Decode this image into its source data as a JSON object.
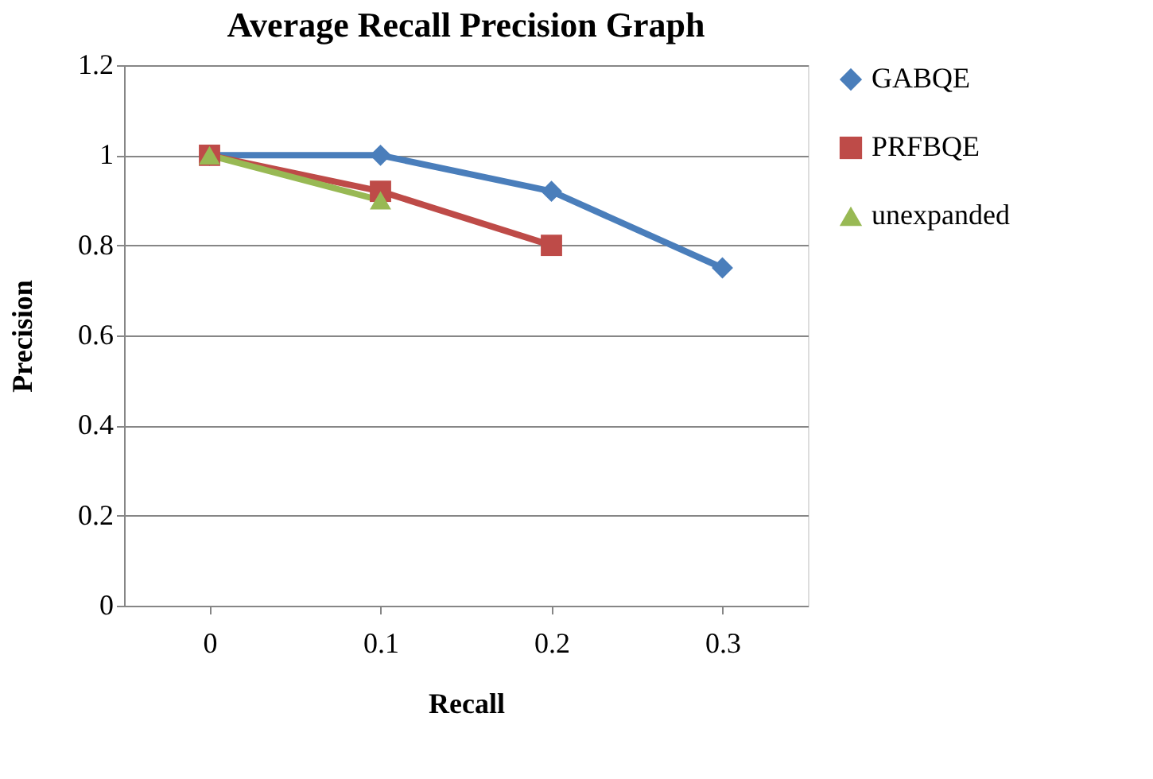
{
  "chart_data": {
    "type": "line",
    "title": "Average  Recall Precision Graph",
    "xlabel": "Recall",
    "ylabel": "Precision",
    "categories": [
      "0",
      "0.1",
      "0.2",
      "0.3"
    ],
    "series": [
      {
        "name": "GABQE",
        "color": "#4a7ebb",
        "marker": "diamond",
        "values": [
          1,
          1,
          0.92,
          0.75
        ]
      },
      {
        "name": "PRFBQE",
        "color": "#be4b48",
        "marker": "square",
        "values": [
          1,
          0.92,
          0.8,
          null
        ]
      },
      {
        "name": "unexpanded",
        "color": "#98b954",
        "marker": "triangle",
        "values": [
          1,
          0.9,
          null,
          null
        ]
      }
    ],
    "ylim": [
      0,
      1.2
    ],
    "yticks": [
      0,
      0.2,
      0.4,
      0.6,
      0.8,
      1,
      1.2
    ],
    "grid": "y",
    "legend": "right",
    "line_style": "solid"
  }
}
